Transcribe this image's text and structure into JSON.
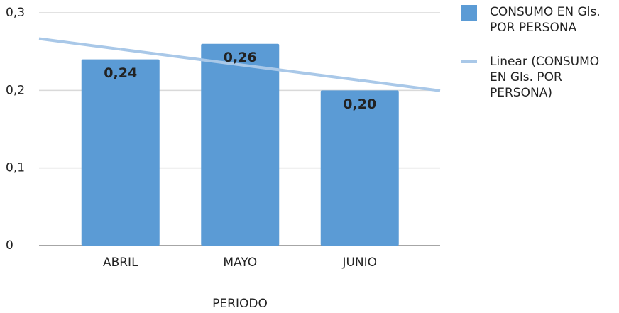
{
  "chart_data": {
    "type": "bar",
    "x_label": "PERIODO",
    "categories": [
      "ABRIL",
      "MAYO",
      "JUNIO"
    ],
    "series": [
      {
        "name": "CONSUMO EN Gls. POR PERSONA",
        "color": "#5b9bd5",
        "values": [
          0.24,
          0.26,
          0.2
        ],
        "value_labels": [
          "0,24",
          "0,26",
          "0,20"
        ]
      },
      {
        "name": "Linear (CONSUMO EN Gls. POR PERSONA)",
        "type": "line",
        "color": "#a9c8e8",
        "values": [
          0.253,
          0.233,
          0.213
        ]
      }
    ],
    "ylim": [
      0,
      0.3
    ],
    "yticks": [
      0,
      {
        "value": 0.1,
        "label": "0,1"
      },
      {
        "value": 0.2,
        "label": "0,2"
      },
      {
        "value": 0.3,
        "label": "0,3"
      }
    ],
    "grid": true,
    "legend": "right"
  }
}
